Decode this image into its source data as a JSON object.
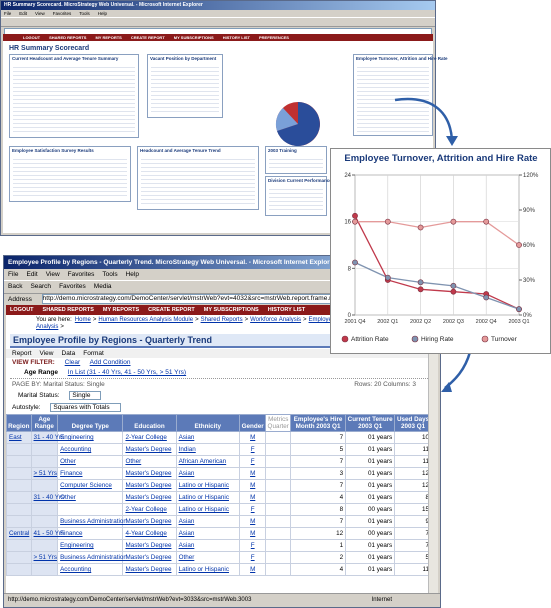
{
  "top_window": {
    "title": "HR Summary Scorecard. MicroStrategy Web Universal. - Microsoft Internet Explorer",
    "menu": [
      "File",
      "Edit",
      "View",
      "Favorites",
      "Tools",
      "Help"
    ],
    "nav": [
      "LOGOUT",
      "SHARED REPORTS",
      "MY REPORTS",
      "CREATE REPORT",
      "MY SUBSCRIPTIONS",
      "HISTORY LIST",
      "PREFERENCES"
    ],
    "page_title": "HR Summary Scorecard",
    "panels": [
      "Current Headcount and Average Tenure Summary",
      "Vacant Position by Department",
      "Employee Turnover, Attrition and Hire Rate",
      "Employee Satisfaction Survey Results",
      "Headcount and Average Tenure Trend",
      "2003 Training",
      "Division Current Performance"
    ]
  },
  "chart_data": {
    "type": "line",
    "title": "Employee Turnover, Attrition and Hire Rate",
    "categories": [
      "2001 Q4",
      "2002 Q1",
      "2002 Q2",
      "2002 Q3",
      "2002 Q4",
      "2003 Q1"
    ],
    "series": [
      {
        "name": "Attrition Rate",
        "color": "#c0394b",
        "axis": "y2",
        "values": [
          85,
          30,
          22,
          20,
          18,
          5
        ]
      },
      {
        "name": "Hiring Rate",
        "color": "#7f93b0",
        "axis": "y2",
        "values": [
          45,
          32,
          28,
          25,
          15,
          5
        ]
      },
      {
        "name": "Turnover",
        "color": "#e49a9a",
        "values": [
          16,
          16,
          15,
          16,
          16,
          12
        ]
      }
    ],
    "ylim": [
      0,
      24
    ],
    "yticks": [
      0,
      8,
      16,
      24
    ],
    "y2lim": [
      0,
      120
    ],
    "y2ticks": [
      {
        "value": 0,
        "label": "0%"
      },
      {
        "value": 30,
        "label": "30%"
      },
      {
        "value": 60,
        "label": "60%"
      },
      {
        "value": 90,
        "label": "90%"
      },
      {
        "value": 120,
        "label": "120%"
      }
    ],
    "grid": true
  },
  "report_window": {
    "title": "Employee Profile by Regions - Quarterly Trend. MicroStrategy Web Universal. - Microsoft Internet Explorer",
    "menu": [
      "File",
      "Edit",
      "View",
      "Favorites",
      "Tools",
      "Help"
    ],
    "toolbar": [
      "Back",
      "Search",
      "Favorites",
      "Media"
    ],
    "address_label": "Address",
    "address": "http://demo.microstrategy.com/DemoCenter/servlet/mstrWeb?evt=4032&src=mstrWeb.report.frame.rb.4032&show=0",
    "nav": [
      "LOGOUT",
      "SHARED REPORTS",
      "MY REPORTS",
      "CREATE REPORT",
      "MY SUBSCRIPTIONS",
      "HISTORY LIST"
    ],
    "breadcrumb_label": "You are here:",
    "breadcrumb": [
      "Home",
      "Human Resources Analysis Module",
      "Shared Reports",
      "Workforce Analysis",
      "Employee Profile Analysis"
    ],
    "report_title": "Employee Profile by Regions - Quarterly Trend",
    "report_menu": [
      "Report",
      "View",
      "Data",
      "Format"
    ],
    "view_filter": "VIEW FILTER:",
    "clear": "Clear",
    "add_condition": "Add Condition",
    "filter_attribute": "Age Range",
    "filter_condition": "In List (31 - 40 Yrs, 41 - 50 Yrs, > 51 Yrs)",
    "page_by": "PAGE BY: Marital Status: Single",
    "rows_columns": "Rows: 20 Columns: 3",
    "marital_label": "Marital Status:",
    "marital_value": "Single",
    "autostyle_label": "Autostyle:",
    "autostyle_value": "Squares with Totals",
    "table": {
      "header": [
        "Region",
        "Age Range",
        "Degree Type",
        "Education",
        "Ethnicity",
        "Gender",
        "Metrics Quarter",
        "Employee's Hire Month 2003 Q1",
        "Current Tenure 2003 Q1",
        "Used Days 2003 Q1"
      ],
      "rows": [
        [
          "East",
          "31 - 40 Yrs",
          "Engineering",
          "2-Year College",
          "Asian",
          "M",
          null,
          "7",
          "01 years",
          "10"
        ],
        [
          null,
          null,
          "Accounting",
          "Master's Degree",
          "Indian",
          "F",
          null,
          "5",
          "01 years",
          "11"
        ],
        [
          null,
          null,
          "Other",
          "Other",
          "African American",
          "F",
          null,
          "7",
          "01 years",
          "11"
        ],
        [
          null,
          "> 51 Yrs",
          "Finance",
          "Master's Degree",
          "Asian",
          "M",
          null,
          "3",
          "01 years",
          "12"
        ],
        [
          null,
          null,
          "Computer Science",
          "Master's Degree",
          "Latino or Hispanic",
          "M",
          null,
          "7",
          "01 years",
          "12"
        ],
        [
          null,
          "31 - 40 Yrs",
          "Other",
          "Master's Degree",
          "Latino or Hispanic",
          "M",
          null,
          "4",
          "01 years",
          "8"
        ],
        [
          null,
          null,
          null,
          "2-Year College",
          "Latino or Hispanic",
          "F",
          null,
          "8",
          "00 years",
          "15"
        ],
        [
          null,
          null,
          "Business Administration",
          "Master's Degree",
          "Asian",
          "M",
          null,
          "7",
          "01 years",
          "9"
        ],
        [
          "Central",
          "41 - 50 Yrs",
          "Finance",
          "4-Year College",
          "Asian",
          "M",
          null,
          "12",
          "00 years",
          "7"
        ],
        [
          null,
          null,
          "Engineering",
          "Master's Degree",
          "Asian",
          "F",
          null,
          "1",
          "01 years",
          "7"
        ],
        [
          null,
          "> 51 Yrs",
          "Business Administration",
          "Master's Degree",
          "Other",
          "F",
          null,
          "2",
          "01 years",
          "5"
        ],
        [
          null,
          null,
          "Accounting",
          "Master's Degree",
          "Latino or Hispanic",
          "M",
          null,
          "4",
          "01 years",
          "11"
        ]
      ]
    },
    "status_url": "http://demo.microstrategy.com/DemoCenter/servlet/mstrWeb?evt=3033&src=mstrWeb.3003",
    "status_zone": "Internet"
  }
}
